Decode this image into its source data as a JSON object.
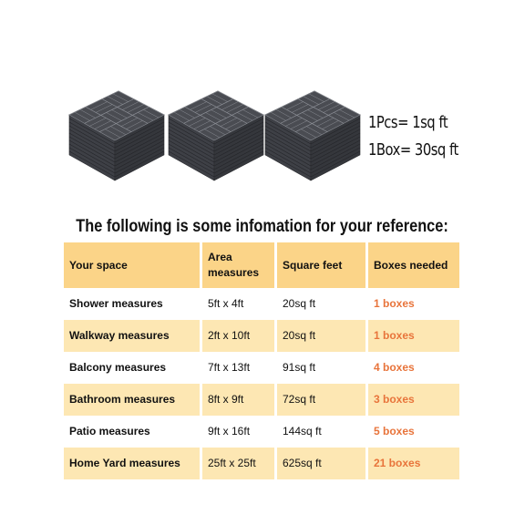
{
  "product": {
    "image_name": "deck-tile-stacks",
    "spec_piece": "1Pcs= 1sq ft",
    "spec_box": "1Box= 30sq ft"
  },
  "heading": "The following is some infomation for your reference:",
  "table": {
    "headers": {
      "space": "Your space",
      "area_line1": "Area",
      "area_line2": "measures",
      "square_feet": "Square feet",
      "boxes": "Boxes needed"
    },
    "rows": [
      {
        "space": "Shower measures",
        "area": "5ft x 4ft",
        "sqft": "20sq ft",
        "boxes": "1 boxes"
      },
      {
        "space": "Walkway measures",
        "area": "2ft x 10ft",
        "sqft": "20sq ft",
        "boxes": "1 boxes"
      },
      {
        "space": "Balcony measures",
        "area": "7ft x 13ft",
        "sqft": "91sq ft",
        "boxes": "4 boxes"
      },
      {
        "space": "Bathroom measures",
        "area": "8ft x 9ft",
        "sqft": "72sq ft",
        "boxes": "3 boxes"
      },
      {
        "space": "Patio measures",
        "area": "9ft x 16ft",
        "sqft": "144sq ft",
        "boxes": "5 boxes"
      },
      {
        "space": "Home Yard measures",
        "area": "25ft x 25ft",
        "sqft": "625sq ft",
        "boxes": "21 boxes"
      }
    ]
  },
  "colors": {
    "header_bg": "#fbd488",
    "shaded_row_bg": "#fde7b3",
    "boxes_text": "#e8743b",
    "tile_dark": "#4a4c52",
    "tile_top": "#6b6e75"
  }
}
